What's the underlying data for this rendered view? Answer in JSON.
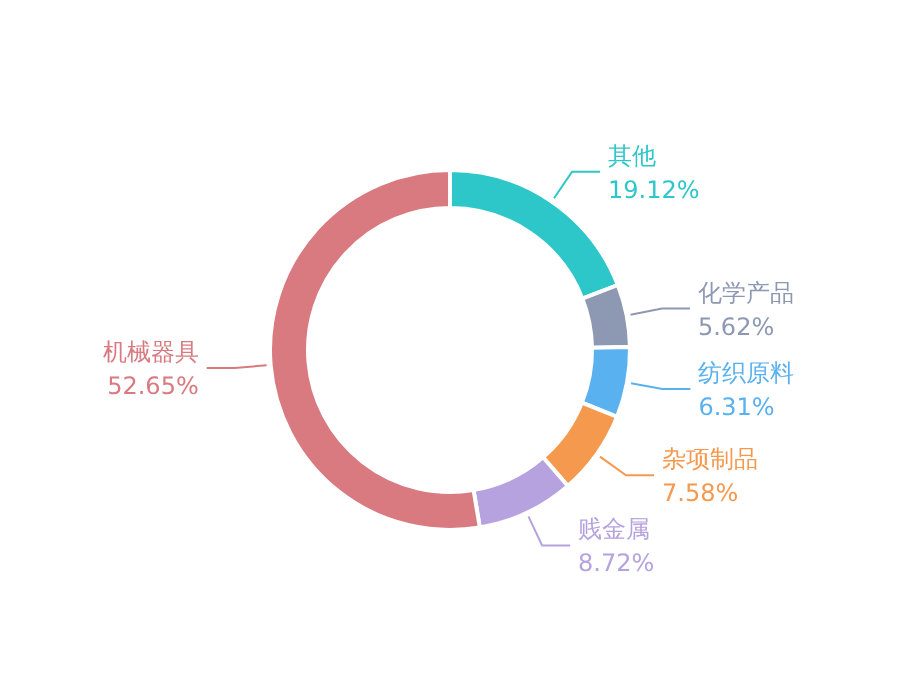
{
  "chart_data": {
    "type": "donut",
    "categories": [
      "其他",
      "化学产品",
      "纺织原料",
      "杂项制品",
      "贱金属",
      "机械器具"
    ],
    "values": [
      19.12,
      5.62,
      6.31,
      7.58,
      8.72,
      52.65
    ],
    "value_labels": [
      "19.12%",
      "5.62%",
      "6.31%",
      "7.58%",
      "8.72%",
      "52.65%"
    ],
    "colors": [
      "#2ec7c9",
      "#8d98b3",
      "#5ab1ef",
      "#f5994e",
      "#b6a2de",
      "#d87a80"
    ]
  }
}
